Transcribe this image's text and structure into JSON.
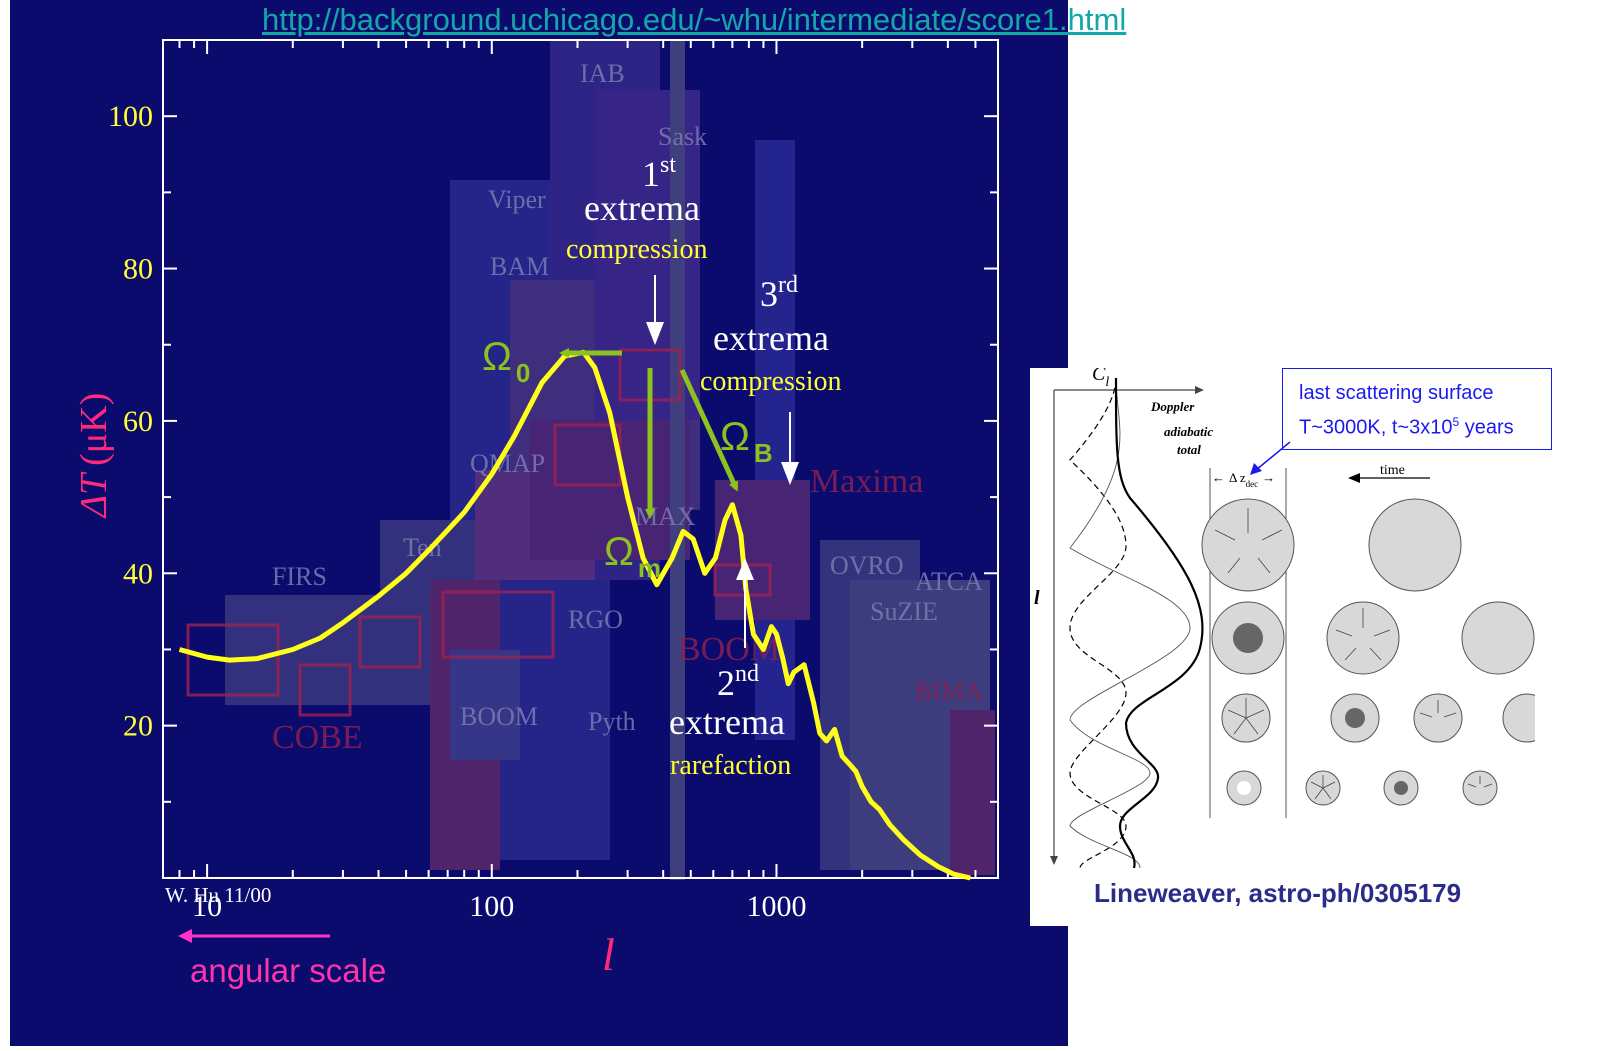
{
  "url": "http://background.uchicago.edu/~whu/intermediate/score1.html",
  "credit": "Lineweaver, astro-ph/0305179",
  "lss_box": {
    "line1": "last scattering surface",
    "line2": "T~3000K, t~3x10",
    "line2_sup": "5",
    "line2_tail": " years"
  },
  "angular_scale": "angular scale",
  "colors": {
    "background": "#0b0b6e",
    "curve": "#ffff1a",
    "arrows_green": "#8cc21e",
    "axis_label": "#ff2a7a",
    "tick_labels": "#ffff33",
    "url": "#12a8a8",
    "box_border": "#1a1aee"
  },
  "chart_data": {
    "type": "line",
    "xscale": "log",
    "xlim": [
      7,
      6000
    ],
    "ylim": [
      0,
      110
    ],
    "xlabel": "l",
    "ylabel_symbol": "ΔT",
    "ylabel_unit": "(μK)",
    "xticklabels": [
      "10",
      "100",
      "1000"
    ],
    "yticklabels": [
      "20",
      "40",
      "60",
      "80",
      "100"
    ],
    "credit_corner": "W. Hu 11/00",
    "series": [
      {
        "x": [
          8,
          10,
          12,
          15,
          20,
          25,
          30,
          40,
          50,
          60,
          80,
          100,
          120,
          150,
          180,
          210,
          230,
          260,
          300,
          340,
          380,
          430,
          470,
          510,
          560,
          610,
          660,
          700,
          750,
          780,
          830,
          900,
          960,
          1000,
          1050,
          1100,
          1150,
          1250,
          1350,
          1420,
          1500,
          1600,
          1700,
          1800,
          1900,
          2000,
          2150,
          2300,
          2500,
          2800,
          3200,
          3700,
          4200,
          4800
        ],
        "y": [
          30,
          29,
          28.6,
          28.8,
          30,
          31.5,
          33.5,
          37,
          40,
          43,
          48,
          53,
          58,
          65,
          68.5,
          69,
          67,
          61,
          50,
          42,
          38.5,
          42,
          45.5,
          44.5,
          40,
          42,
          47,
          49,
          45,
          38,
          32,
          30,
          33,
          32,
          29,
          25.5,
          27,
          28,
          23,
          19,
          18,
          19.5,
          16,
          15,
          14,
          12,
          10,
          9,
          7,
          5,
          3,
          1.5,
          0.5,
          0
        ]
      }
    ],
    "experiment_labels": [
      "IAB",
      "Sask",
      "Viper",
      "BAM",
      "QMAP",
      "FIRS",
      "Ten",
      "RGO",
      "BOOM",
      "Pyth",
      "COBE",
      "OVRO",
      "ATCA",
      "SuZIE",
      "BIMA",
      "Maxima",
      "BOOM",
      "MAX"
    ],
    "annotations": {
      "first": {
        "sup": "st",
        "num": "1",
        "word": "extrema",
        "kind": "compression"
      },
      "second": {
        "sup": "nd",
        "num": "2",
        "word": "extrema",
        "kind": "rarefaction"
      },
      "third": {
        "sup": "rd",
        "num": "3",
        "word": "extrema",
        "kind": "compression"
      },
      "omega0": {
        "sym": "Ω",
        "sub": "0"
      },
      "omegam": {
        "sym": "Ω",
        "sub": "m"
      },
      "omegab": {
        "sym": "Ω",
        "sub": "B"
      }
    }
  },
  "diagram": {
    "cl_label": "C",
    "cl_sub": "l",
    "l_label": "l",
    "doppler": "Doppler",
    "adiabatic": "adiabatic",
    "total": "total",
    "dz": "Δ z",
    "dz_sub": "dec",
    "time": "time"
  }
}
